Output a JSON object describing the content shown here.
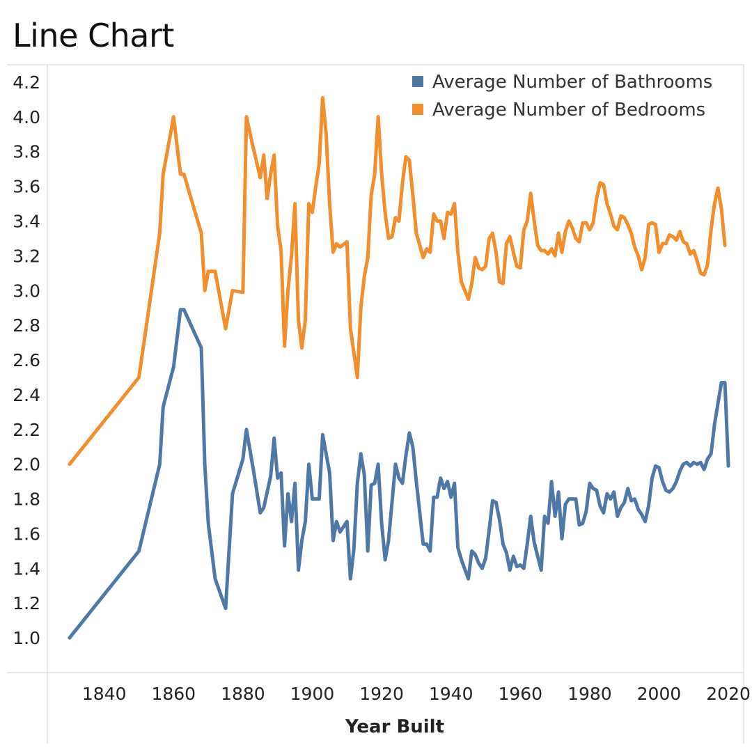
{
  "title": "Line Chart",
  "chart_data": {
    "type": "line",
    "title": "Line Chart",
    "xlabel": "Year Built",
    "ylabel": "",
    "xlim": [
      1824,
      2024
    ],
    "ylim": [
      0.8,
      4.3
    ],
    "x_ticks": [
      "1840",
      "1860",
      "1880",
      "1900",
      "1920",
      "1940",
      "1960",
      "1980",
      "2000",
      "2020"
    ],
    "y_ticks": [
      "1.0",
      "1.2",
      "1.4",
      "1.6",
      "1.8",
      "2.0",
      "2.2",
      "2.4",
      "2.6",
      "2.8",
      "3.0",
      "3.2",
      "3.4",
      "3.6",
      "3.8",
      "4.0",
      "4.2"
    ],
    "legend_position": "top-right",
    "grid": false,
    "series": [
      {
        "name": "Average Number of Bathrooms",
        "color": "#4E79A7",
        "points": [
          [
            1830,
            1.0
          ],
          [
            1850,
            1.5
          ],
          [
            1856,
            2.0
          ],
          [
            1857,
            2.33
          ],
          [
            1860,
            2.56
          ],
          [
            1862,
            2.89
          ],
          [
            1863,
            2.89
          ],
          [
            1868,
            2.67
          ],
          [
            1869,
            2.0
          ],
          [
            1870,
            1.66
          ],
          [
            1872,
            1.34
          ],
          [
            1875,
            1.17
          ],
          [
            1877,
            1.83
          ],
          [
            1880,
            2.03
          ],
          [
            1881,
            2.2
          ],
          [
            1883,
            1.97
          ],
          [
            1885,
            1.72
          ],
          [
            1886,
            1.75
          ],
          [
            1888,
            1.93
          ],
          [
            1889,
            2.15
          ],
          [
            1890,
            1.92
          ],
          [
            1891,
            1.95
          ],
          [
            1892,
            1.53
          ],
          [
            1893,
            1.83
          ],
          [
            1894,
            1.67
          ],
          [
            1895,
            1.89
          ],
          [
            1896,
            1.39
          ],
          [
            1897,
            1.56
          ],
          [
            1898,
            1.67
          ],
          [
            1899,
            2.0
          ],
          [
            1900,
            1.8
          ],
          [
            1902,
            1.8
          ],
          [
            1903,
            2.17
          ],
          [
            1905,
            1.95
          ],
          [
            1906,
            1.56
          ],
          [
            1907,
            1.67
          ],
          [
            1908,
            1.61
          ],
          [
            1910,
            1.67
          ],
          [
            1911,
            1.34
          ],
          [
            1912,
            1.51
          ],
          [
            1913,
            1.89
          ],
          [
            1914,
            2.06
          ],
          [
            1915,
            1.94
          ],
          [
            1916,
            1.5
          ],
          [
            1917,
            1.88
          ],
          [
            1918,
            1.89
          ],
          [
            1919,
            2.0
          ],
          [
            1920,
            1.66
          ],
          [
            1921,
            1.45
          ],
          [
            1922,
            1.56
          ],
          [
            1924,
            2.0
          ],
          [
            1925,
            1.92
          ],
          [
            1926,
            1.89
          ],
          [
            1927,
            2.05
          ],
          [
            1928,
            2.18
          ],
          [
            1929,
            2.1
          ],
          [
            1930,
            1.9
          ],
          [
            1932,
            1.54
          ],
          [
            1933,
            1.54
          ],
          [
            1934,
            1.5
          ],
          [
            1935,
            1.81
          ],
          [
            1936,
            1.81
          ],
          [
            1937,
            1.92
          ],
          [
            1938,
            1.86
          ],
          [
            1939,
            1.9
          ],
          [
            1940,
            1.81
          ],
          [
            1941,
            1.89
          ],
          [
            1942,
            1.52
          ],
          [
            1943,
            1.45
          ],
          [
            1945,
            1.34
          ],
          [
            1946,
            1.5
          ],
          [
            1947,
            1.48
          ],
          [
            1948,
            1.43
          ],
          [
            1949,
            1.4
          ],
          [
            1950,
            1.46
          ],
          [
            1951,
            1.62
          ],
          [
            1952,
            1.79
          ],
          [
            1953,
            1.78
          ],
          [
            1954,
            1.68
          ],
          [
            1955,
            1.54
          ],
          [
            1956,
            1.49
          ],
          [
            1957,
            1.39
          ],
          [
            1958,
            1.47
          ],
          [
            1959,
            1.41
          ],
          [
            1960,
            1.42
          ],
          [
            1961,
            1.4
          ],
          [
            1962,
            1.54
          ],
          [
            1963,
            1.7
          ],
          [
            1964,
            1.55
          ],
          [
            1966,
            1.39
          ],
          [
            1967,
            1.7
          ],
          [
            1968,
            1.66
          ],
          [
            1969,
            1.9
          ],
          [
            1970,
            1.7
          ],
          [
            1971,
            1.84
          ],
          [
            1972,
            1.57
          ],
          [
            1973,
            1.77
          ],
          [
            1974,
            1.8
          ],
          [
            1976,
            1.8
          ],
          [
            1977,
            1.65
          ],
          [
            1978,
            1.66
          ],
          [
            1979,
            1.73
          ],
          [
            1980,
            1.89
          ],
          [
            1981,
            1.86
          ],
          [
            1982,
            1.85
          ],
          [
            1983,
            1.76
          ],
          [
            1984,
            1.72
          ],
          [
            1985,
            1.83
          ],
          [
            1986,
            1.8
          ],
          [
            1987,
            1.84
          ],
          [
            1988,
            1.7
          ],
          [
            1989,
            1.75
          ],
          [
            1990,
            1.78
          ],
          [
            1991,
            1.86
          ],
          [
            1992,
            1.79
          ],
          [
            1993,
            1.8
          ],
          [
            1994,
            1.74
          ],
          [
            1995,
            1.71
          ],
          [
            1996,
            1.67
          ],
          [
            1997,
            1.76
          ],
          [
            1998,
            1.92
          ],
          [
            1999,
            1.99
          ],
          [
            2000,
            1.98
          ],
          [
            2001,
            1.9
          ],
          [
            2002,
            1.85
          ],
          [
            2003,
            1.84
          ],
          [
            2004,
            1.86
          ],
          [
            2005,
            1.9
          ],
          [
            2006,
            1.96
          ],
          [
            2007,
            2.0
          ],
          [
            2008,
            2.01
          ],
          [
            2009,
            1.99
          ],
          [
            2010,
            2.01
          ],
          [
            2011,
            2.0
          ],
          [
            2012,
            2.01
          ],
          [
            2013,
            1.97
          ],
          [
            2014,
            2.03
          ],
          [
            2015,
            2.06
          ],
          [
            2016,
            2.23
          ],
          [
            2017,
            2.35
          ],
          [
            2018,
            2.47
          ],
          [
            2019,
            2.47
          ],
          [
            2020,
            1.99
          ]
        ]
      },
      {
        "name": "Average Number of Bedrooms",
        "color": "#F28E2B",
        "points": [
          [
            1830,
            2.0
          ],
          [
            1850,
            2.5
          ],
          [
            1856,
            3.33
          ],
          [
            1857,
            3.67
          ],
          [
            1860,
            4.0
          ],
          [
            1862,
            3.67
          ],
          [
            1863,
            3.67
          ],
          [
            1868,
            3.33
          ],
          [
            1869,
            3.0
          ],
          [
            1870,
            3.11
          ],
          [
            1872,
            3.11
          ],
          [
            1875,
            2.78
          ],
          [
            1877,
            3.0
          ],
          [
            1880,
            2.99
          ],
          [
            1881,
            4.0
          ],
          [
            1883,
            3.82
          ],
          [
            1885,
            3.65
          ],
          [
            1886,
            3.78
          ],
          [
            1887,
            3.53
          ],
          [
            1888,
            3.67
          ],
          [
            1889,
            3.78
          ],
          [
            1890,
            3.37
          ],
          [
            1891,
            3.23
          ],
          [
            1892,
            2.68
          ],
          [
            1893,
            3.0
          ],
          [
            1894,
            3.2
          ],
          [
            1895,
            3.5
          ],
          [
            1896,
            2.83
          ],
          [
            1897,
            2.67
          ],
          [
            1898,
            2.83
          ],
          [
            1899,
            3.5
          ],
          [
            1900,
            3.45
          ],
          [
            1901,
            3.6
          ],
          [
            1902,
            3.73
          ],
          [
            1903,
            4.11
          ],
          [
            1904,
            3.9
          ],
          [
            1905,
            3.5
          ],
          [
            1906,
            3.22
          ],
          [
            1907,
            3.27
          ],
          [
            1908,
            3.25
          ],
          [
            1910,
            3.28
          ],
          [
            1911,
            2.78
          ],
          [
            1913,
            2.5
          ],
          [
            1914,
            2.9
          ],
          [
            1915,
            3.08
          ],
          [
            1916,
            3.19
          ],
          [
            1917,
            3.55
          ],
          [
            1918,
            3.67
          ],
          [
            1919,
            4.0
          ],
          [
            1920,
            3.67
          ],
          [
            1921,
            3.45
          ],
          [
            1922,
            3.3
          ],
          [
            1923,
            3.31
          ],
          [
            1924,
            3.42
          ],
          [
            1925,
            3.4
          ],
          [
            1926,
            3.62
          ],
          [
            1927,
            3.77
          ],
          [
            1928,
            3.75
          ],
          [
            1929,
            3.55
          ],
          [
            1930,
            3.33
          ],
          [
            1932,
            3.19
          ],
          [
            1933,
            3.24
          ],
          [
            1934,
            3.22
          ],
          [
            1935,
            3.44
          ],
          [
            1936,
            3.4
          ],
          [
            1937,
            3.4
          ],
          [
            1938,
            3.3
          ],
          [
            1939,
            3.45
          ],
          [
            1940,
            3.44
          ],
          [
            1941,
            3.5
          ],
          [
            1942,
            3.22
          ],
          [
            1943,
            3.05
          ],
          [
            1945,
            2.95
          ],
          [
            1946,
            3.04
          ],
          [
            1947,
            3.19
          ],
          [
            1948,
            3.13
          ],
          [
            1949,
            3.12
          ],
          [
            1950,
            3.14
          ],
          [
            1951,
            3.3
          ],
          [
            1952,
            3.33
          ],
          [
            1953,
            3.22
          ],
          [
            1954,
            3.05
          ],
          [
            1955,
            3.04
          ],
          [
            1956,
            3.27
          ],
          [
            1957,
            3.31
          ],
          [
            1958,
            3.22
          ],
          [
            1959,
            3.14
          ],
          [
            1960,
            3.13
          ],
          [
            1961,
            3.35
          ],
          [
            1962,
            3.4
          ],
          [
            1963,
            3.56
          ],
          [
            1964,
            3.4
          ],
          [
            1965,
            3.26
          ],
          [
            1966,
            3.23
          ],
          [
            1967,
            3.23
          ],
          [
            1968,
            3.21
          ],
          [
            1969,
            3.24
          ],
          [
            1970,
            3.2
          ],
          [
            1971,
            3.33
          ],
          [
            1972,
            3.22
          ],
          [
            1973,
            3.34
          ],
          [
            1974,
            3.4
          ],
          [
            1975,
            3.36
          ],
          [
            1976,
            3.3
          ],
          [
            1977,
            3.28
          ],
          [
            1978,
            3.39
          ],
          [
            1979,
            3.39
          ],
          [
            1980,
            3.35
          ],
          [
            1981,
            3.39
          ],
          [
            1982,
            3.53
          ],
          [
            1983,
            3.62
          ],
          [
            1984,
            3.61
          ],
          [
            1985,
            3.5
          ],
          [
            1986,
            3.44
          ],
          [
            1987,
            3.37
          ],
          [
            1988,
            3.35
          ],
          [
            1989,
            3.43
          ],
          [
            1990,
            3.42
          ],
          [
            1991,
            3.38
          ],
          [
            1992,
            3.33
          ],
          [
            1993,
            3.25
          ],
          [
            1994,
            3.2
          ],
          [
            1995,
            3.12
          ],
          [
            1996,
            3.19
          ],
          [
            1997,
            3.38
          ],
          [
            1998,
            3.39
          ],
          [
            1999,
            3.38
          ],
          [
            2000,
            3.22
          ],
          [
            2001,
            3.27
          ],
          [
            2002,
            3.27
          ],
          [
            2003,
            3.32
          ],
          [
            2004,
            3.31
          ],
          [
            2005,
            3.29
          ],
          [
            2006,
            3.34
          ],
          [
            2007,
            3.28
          ],
          [
            2008,
            3.27
          ],
          [
            2009,
            3.21
          ],
          [
            2010,
            3.23
          ],
          [
            2011,
            3.17
          ],
          [
            2012,
            3.1
          ],
          [
            2013,
            3.09
          ],
          [
            2014,
            3.15
          ],
          [
            2015,
            3.35
          ],
          [
            2016,
            3.5
          ],
          [
            2017,
            3.59
          ],
          [
            2018,
            3.47
          ],
          [
            2019,
            3.26
          ]
        ]
      }
    ]
  }
}
